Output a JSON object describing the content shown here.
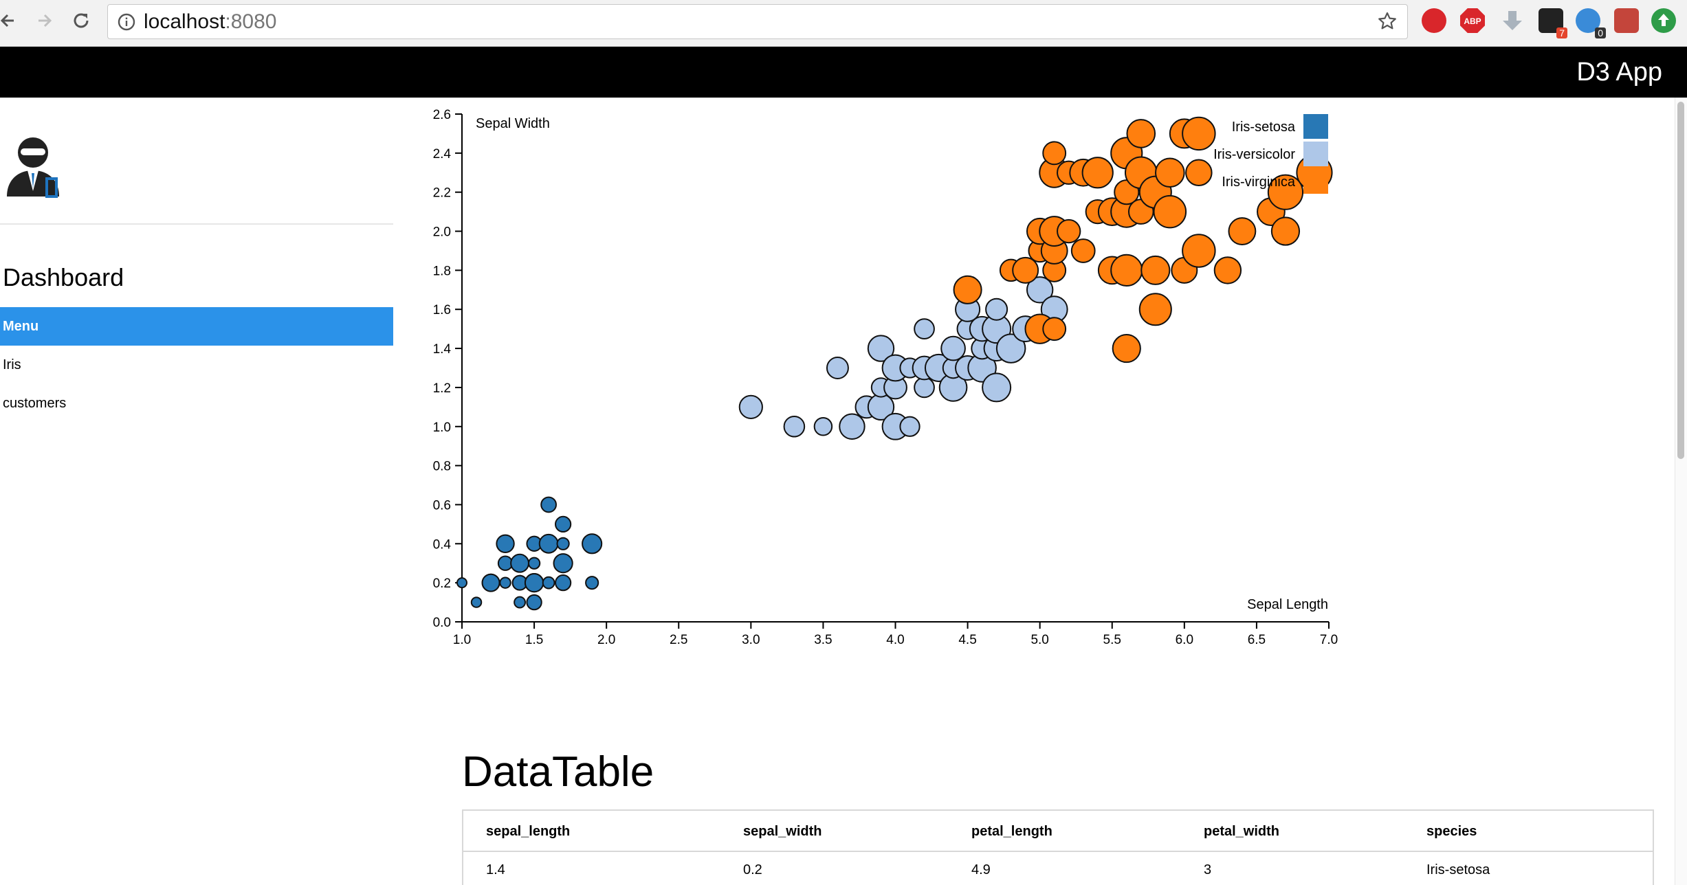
{
  "browser": {
    "url_host": "localhost",
    "url_port": ":8080",
    "extension_badges": [
      "7",
      "0"
    ]
  },
  "app": {
    "title": "D3 App"
  },
  "sidebar": {
    "title": "Dashboard",
    "items": [
      {
        "label": "Menu",
        "active": true
      },
      {
        "label": "Iris",
        "active": false
      },
      {
        "label": "customers",
        "active": false
      }
    ]
  },
  "colors": {
    "setosa": "#2878b5",
    "versicolor": "#aec7e8",
    "virginica": "#ff7f0e",
    "menu_active": "#2b92e9"
  },
  "chart_data": {
    "type": "scatter",
    "xlabel": "Sepal Length",
    "ylabel": "Sepal Width",
    "xlim": [
      1.0,
      7.0
    ],
    "ylim": [
      0.0,
      2.6
    ],
    "x_ticks": [
      "1.0",
      "1.5",
      "2.0",
      "2.5",
      "3.0",
      "3.5",
      "4.0",
      "4.5",
      "5.0",
      "5.5",
      "6.0",
      "6.5",
      "7.0"
    ],
    "y_ticks": [
      "0.0",
      "0.2",
      "0.4",
      "0.6",
      "0.8",
      "1.0",
      "1.2",
      "1.4",
      "1.6",
      "1.8",
      "2.0",
      "2.2",
      "2.4",
      "2.6"
    ],
    "legend_position": "top-right",
    "series": [
      {
        "name": "Iris-setosa",
        "points": [
          [
            1.0,
            0.2
          ],
          [
            1.1,
            0.1
          ],
          [
            1.2,
            0.2
          ],
          [
            1.2,
            0.2
          ],
          [
            1.3,
            0.2
          ],
          [
            1.3,
            0.3
          ],
          [
            1.3,
            0.4
          ],
          [
            1.4,
            0.2
          ],
          [
            1.4,
            0.2
          ],
          [
            1.4,
            0.3
          ],
          [
            1.4,
            0.1
          ],
          [
            1.5,
            0.2
          ],
          [
            1.5,
            0.2
          ],
          [
            1.5,
            0.4
          ],
          [
            1.5,
            0.1
          ],
          [
            1.5,
            0.3
          ],
          [
            1.6,
            0.2
          ],
          [
            1.6,
            0.4
          ],
          [
            1.6,
            0.6
          ],
          [
            1.7,
            0.2
          ],
          [
            1.7,
            0.3
          ],
          [
            1.7,
            0.4
          ],
          [
            1.7,
            0.5
          ],
          [
            1.9,
            0.2
          ],
          [
            1.9,
            0.4
          ]
        ]
      },
      {
        "name": "Iris-versicolor",
        "points": [
          [
            3.0,
            1.1
          ],
          [
            3.3,
            1.0
          ],
          [
            3.5,
            1.0
          ],
          [
            3.6,
            1.3
          ],
          [
            3.7,
            1.0
          ],
          [
            3.8,
            1.1
          ],
          [
            3.9,
            1.1
          ],
          [
            3.9,
            1.2
          ],
          [
            3.9,
            1.4
          ],
          [
            4.0,
            1.0
          ],
          [
            4.0,
            1.2
          ],
          [
            4.0,
            1.3
          ],
          [
            4.1,
            1.0
          ],
          [
            4.1,
            1.3
          ],
          [
            4.2,
            1.2
          ],
          [
            4.2,
            1.3
          ],
          [
            4.2,
            1.5
          ],
          [
            4.3,
            1.3
          ],
          [
            4.4,
            1.2
          ],
          [
            4.4,
            1.3
          ],
          [
            4.4,
            1.4
          ],
          [
            4.5,
            1.3
          ],
          [
            4.5,
            1.5
          ],
          [
            4.5,
            1.6
          ],
          [
            4.6,
            1.3
          ],
          [
            4.6,
            1.4
          ],
          [
            4.6,
            1.5
          ],
          [
            4.7,
            1.2
          ],
          [
            4.7,
            1.4
          ],
          [
            4.7,
            1.5
          ],
          [
            4.7,
            1.6
          ],
          [
            4.8,
            1.4
          ],
          [
            4.9,
            1.5
          ],
          [
            5.0,
            1.7
          ],
          [
            5.1,
            1.6
          ]
        ]
      },
      {
        "name": "Iris-virginica",
        "points": [
          [
            4.5,
            1.7
          ],
          [
            4.8,
            1.8
          ],
          [
            4.9,
            1.8
          ],
          [
            5.0,
            1.5
          ],
          [
            5.0,
            1.9
          ],
          [
            5.0,
            2.0
          ],
          [
            5.1,
            1.5
          ],
          [
            5.1,
            1.8
          ],
          [
            5.1,
            1.9
          ],
          [
            5.1,
            2.0
          ],
          [
            5.1,
            2.3
          ],
          [
            5.1,
            2.4
          ],
          [
            5.2,
            2.0
          ],
          [
            5.2,
            2.3
          ],
          [
            5.3,
            1.9
          ],
          [
            5.3,
            2.3
          ],
          [
            5.4,
            2.1
          ],
          [
            5.4,
            2.3
          ],
          [
            5.5,
            1.8
          ],
          [
            5.5,
            2.1
          ],
          [
            5.6,
            1.4
          ],
          [
            5.6,
            1.8
          ],
          [
            5.6,
            2.1
          ],
          [
            5.6,
            2.2
          ],
          [
            5.6,
            2.4
          ],
          [
            5.7,
            2.1
          ],
          [
            5.7,
            2.3
          ],
          [
            5.7,
            2.5
          ],
          [
            5.8,
            1.6
          ],
          [
            5.8,
            1.8
          ],
          [
            5.8,
            2.2
          ],
          [
            5.9,
            2.1
          ],
          [
            5.9,
            2.3
          ],
          [
            6.0,
            1.8
          ],
          [
            6.0,
            2.5
          ],
          [
            6.1,
            1.9
          ],
          [
            6.1,
            2.3
          ],
          [
            6.1,
            2.5
          ],
          [
            6.3,
            1.8
          ],
          [
            6.4,
            2.0
          ],
          [
            6.6,
            2.1
          ],
          [
            6.7,
            2.0
          ],
          [
            6.7,
            2.2
          ],
          [
            6.9,
            2.3
          ]
        ]
      }
    ]
  },
  "datatable": {
    "title": "DataTable",
    "columns": [
      "sepal_length",
      "sepal_width",
      "petal_length",
      "petal_width",
      "species"
    ],
    "rows": [
      [
        "1.4",
        "0.2",
        "4.9",
        "3",
        "Iris-setosa"
      ]
    ]
  }
}
